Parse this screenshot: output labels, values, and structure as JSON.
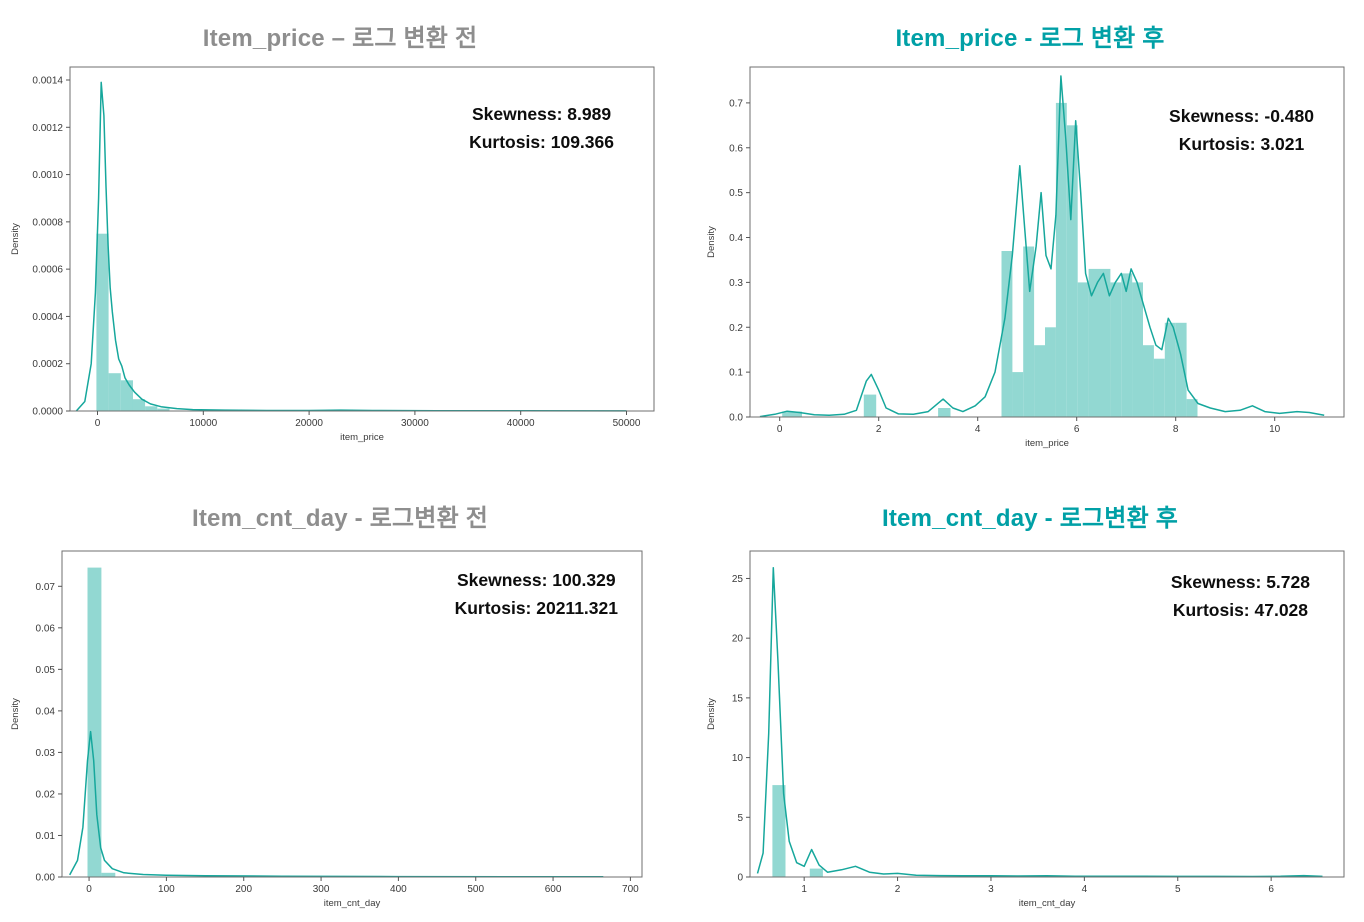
{
  "colors": {
    "line": "#16a79c",
    "fill": "#86d4cd",
    "title_muted": "#8e8e8e",
    "title_accent": "#00a0a6",
    "annotation": "#0d0d0d",
    "frame": "#6f6f6f"
  },
  "chart_data": [
    {
      "type": "area",
      "subtype": "histogram+kde-density",
      "title": "Item_price – 로그 변환 전",
      "title_style": "muted",
      "annotation": {
        "skewness": "Skewness: 8.989",
        "kurtosis": "Kurtosis: 109.366"
      },
      "xlabel": "item_price",
      "ylabel": "Density",
      "xlim": [
        -2600,
        52600
      ],
      "ylim": [
        0,
        0.001455
      ],
      "grid": false,
      "xticks": [
        {
          "v": 0,
          "label": "0"
        },
        {
          "v": 10000,
          "label": "10000"
        },
        {
          "v": 20000,
          "label": "20000"
        },
        {
          "v": 30000,
          "label": "30000"
        },
        {
          "v": 40000,
          "label": "40000"
        },
        {
          "v": 50000,
          "label": "50000"
        }
      ],
      "yticks": [
        {
          "v": 0.0,
          "label": "0.0000"
        },
        {
          "v": 0.0002,
          "label": "0.0002"
        },
        {
          "v": 0.0004,
          "label": "0.0004"
        },
        {
          "v": 0.0006,
          "label": "0.0006"
        },
        {
          "v": 0.0008,
          "label": "0.0008"
        },
        {
          "v": 0.001,
          "label": "0.0010"
        },
        {
          "v": 0.0012,
          "label": "0.0012"
        },
        {
          "v": 0.0014,
          "label": "0.0014"
        }
      ],
      "bars": [
        [
          -100,
          1050,
          0.00075
        ],
        [
          1050,
          2200,
          0.00016
        ],
        [
          2200,
          3350,
          0.00013
        ],
        [
          3350,
          4500,
          5e-05
        ],
        [
          4500,
          5650,
          2e-05
        ],
        [
          5650,
          6800,
          1e-05
        ]
      ],
      "kde": [
        [
          -2000,
          0.0
        ],
        [
          -1200,
          4e-05
        ],
        [
          -600,
          0.0002
        ],
        [
          -200,
          0.0005
        ],
        [
          100,
          0.0009
        ],
        [
          350,
          0.00139
        ],
        [
          600,
          0.00125
        ],
        [
          800,
          0.00095
        ],
        [
          1000,
          0.0007
        ],
        [
          1200,
          0.00052
        ],
        [
          1400,
          0.00042
        ],
        [
          1700,
          0.0003
        ],
        [
          2000,
          0.00022
        ],
        [
          2300,
          0.00019
        ],
        [
          2600,
          0.00014
        ],
        [
          3000,
          0.00011
        ],
        [
          3500,
          8e-05
        ],
        [
          4200,
          5e-05
        ],
        [
          5000,
          3e-05
        ],
        [
          6000,
          1.8e-05
        ],
        [
          7500,
          1e-05
        ],
        [
          9000,
          6e-06
        ],
        [
          12000,
          4e-06
        ],
        [
          16000,
          2e-06
        ],
        [
          20000,
          2e-06
        ],
        [
          23000,
          4e-06
        ],
        [
          26000,
          2e-06
        ],
        [
          32000,
          1e-06
        ],
        [
          40000,
          1e-06
        ],
        [
          50000,
          5e-07
        ]
      ]
    },
    {
      "type": "area",
      "subtype": "histogram+kde-density",
      "title": "Item_price - 로그 변환 후",
      "title_style": "accent",
      "annotation": {
        "skewness": "Skewness: -0.480",
        "kurtosis": "Kurtosis: 3.021"
      },
      "xlabel": "item_price",
      "ylabel": "Density",
      "xlim": [
        -0.6,
        11.4
      ],
      "ylim": [
        0,
        0.78
      ],
      "grid": false,
      "xticks": [
        {
          "v": 0,
          "label": "0"
        },
        {
          "v": 2,
          "label": "2"
        },
        {
          "v": 4,
          "label": "4"
        },
        {
          "v": 6,
          "label": "6"
        },
        {
          "v": 8,
          "label": "8"
        },
        {
          "v": 10,
          "label": "10"
        }
      ],
      "yticks": [
        {
          "v": 0.0,
          "label": "0.0"
        },
        {
          "v": 0.1,
          "label": "0.1"
        },
        {
          "v": 0.2,
          "label": "0.2"
        },
        {
          "v": 0.3,
          "label": "0.3"
        },
        {
          "v": 0.4,
          "label": "0.4"
        },
        {
          "v": 0.5,
          "label": "0.5"
        },
        {
          "v": 0.6,
          "label": "0.6"
        },
        {
          "v": 0.7,
          "label": "0.7"
        }
      ],
      "bars": [
        [
          0.05,
          0.45,
          0.012
        ],
        [
          1.7,
          1.95,
          0.05
        ],
        [
          3.2,
          3.45,
          0.02
        ],
        [
          4.48,
          4.7,
          0.37
        ],
        [
          4.7,
          4.92,
          0.1
        ],
        [
          4.92,
          5.14,
          0.38
        ],
        [
          5.14,
          5.36,
          0.16
        ],
        [
          5.36,
          5.58,
          0.2
        ],
        [
          5.58,
          5.8,
          0.7
        ],
        [
          5.8,
          6.02,
          0.65
        ],
        [
          6.02,
          6.24,
          0.3
        ],
        [
          6.24,
          6.46,
          0.33
        ],
        [
          6.46,
          6.68,
          0.33
        ],
        [
          6.68,
          6.9,
          0.3
        ],
        [
          6.9,
          7.12,
          0.32
        ],
        [
          7.12,
          7.34,
          0.3
        ],
        [
          7.34,
          7.56,
          0.16
        ],
        [
          7.56,
          7.78,
          0.13
        ],
        [
          7.78,
          8.0,
          0.21
        ],
        [
          8.0,
          8.22,
          0.21
        ],
        [
          8.22,
          8.44,
          0.04
        ]
      ],
      "kde": [
        [
          -0.4,
          0.001
        ],
        [
          -0.1,
          0.006
        ],
        [
          0.15,
          0.013
        ],
        [
          0.4,
          0.01
        ],
        [
          0.7,
          0.005
        ],
        [
          1.0,
          0.004
        ],
        [
          1.3,
          0.006
        ],
        [
          1.55,
          0.015
        ],
        [
          1.75,
          0.08
        ],
        [
          1.85,
          0.095
        ],
        [
          2.0,
          0.06
        ],
        [
          2.15,
          0.02
        ],
        [
          2.4,
          0.007
        ],
        [
          2.7,
          0.006
        ],
        [
          3.0,
          0.012
        ],
        [
          3.3,
          0.04
        ],
        [
          3.5,
          0.02
        ],
        [
          3.7,
          0.012
        ],
        [
          3.95,
          0.025
        ],
        [
          4.15,
          0.045
        ],
        [
          4.35,
          0.1
        ],
        [
          4.55,
          0.22
        ],
        [
          4.7,
          0.36
        ],
        [
          4.85,
          0.56
        ],
        [
          4.95,
          0.42
        ],
        [
          5.05,
          0.28
        ],
        [
          5.18,
          0.38
        ],
        [
          5.28,
          0.5
        ],
        [
          5.38,
          0.36
        ],
        [
          5.48,
          0.33
        ],
        [
          5.58,
          0.45
        ],
        [
          5.68,
          0.76
        ],
        [
          5.78,
          0.62
        ],
        [
          5.88,
          0.44
        ],
        [
          5.98,
          0.66
        ],
        [
          6.08,
          0.5
        ],
        [
          6.18,
          0.32
        ],
        [
          6.3,
          0.27
        ],
        [
          6.42,
          0.3
        ],
        [
          6.54,
          0.32
        ],
        [
          6.66,
          0.27
        ],
        [
          6.78,
          0.3
        ],
        [
          6.9,
          0.32
        ],
        [
          7.0,
          0.28
        ],
        [
          7.1,
          0.33
        ],
        [
          7.22,
          0.3
        ],
        [
          7.35,
          0.25
        ],
        [
          7.48,
          0.2
        ],
        [
          7.6,
          0.16
        ],
        [
          7.72,
          0.15
        ],
        [
          7.85,
          0.22
        ],
        [
          7.95,
          0.2
        ],
        [
          8.1,
          0.14
        ],
        [
          8.25,
          0.06
        ],
        [
          8.45,
          0.03
        ],
        [
          8.7,
          0.02
        ],
        [
          9.0,
          0.012
        ],
        [
          9.3,
          0.015
        ],
        [
          9.55,
          0.025
        ],
        [
          9.8,
          0.012
        ],
        [
          10.1,
          0.008
        ],
        [
          10.45,
          0.012
        ],
        [
          10.7,
          0.01
        ],
        [
          11.0,
          0.004
        ]
      ]
    },
    {
      "type": "area",
      "subtype": "histogram+kde-density",
      "title": "Item_cnt_day - 로그변환 전",
      "title_style": "muted",
      "annotation": {
        "skewness": "Skewness: 100.329",
        "kurtosis": "Kurtosis: 20211.321"
      },
      "xlabel": "item_cnt_day",
      "ylabel": "Density",
      "xlim": [
        -35,
        715
      ],
      "ylim": [
        0,
        0.0785
      ],
      "grid": false,
      "xticks": [
        {
          "v": 0,
          "label": "0"
        },
        {
          "v": 100,
          "label": "100"
        },
        {
          "v": 200,
          "label": "200"
        },
        {
          "v": 300,
          "label": "300"
        },
        {
          "v": 400,
          "label": "400"
        },
        {
          "v": 500,
          "label": "500"
        },
        {
          "v": 600,
          "label": "600"
        },
        {
          "v": 700,
          "label": "700"
        }
      ],
      "yticks": [
        {
          "v": 0.0,
          "label": "0.00"
        },
        {
          "v": 0.01,
          "label": "0.01"
        },
        {
          "v": 0.02,
          "label": "0.02"
        },
        {
          "v": 0.03,
          "label": "0.03"
        },
        {
          "v": 0.04,
          "label": "0.04"
        },
        {
          "v": 0.05,
          "label": "0.05"
        },
        {
          "v": 0.06,
          "label": "0.06"
        },
        {
          "v": 0.07,
          "label": "0.07"
        }
      ],
      "bars": [
        [
          -2,
          16,
          0.0745
        ],
        [
          16,
          34,
          0.001
        ]
      ],
      "kde": [
        [
          -25,
          0.0005
        ],
        [
          -15,
          0.004
        ],
        [
          -8,
          0.012
        ],
        [
          -2,
          0.028
        ],
        [
          2,
          0.035
        ],
        [
          6,
          0.028
        ],
        [
          10,
          0.015
        ],
        [
          15,
          0.007
        ],
        [
          20,
          0.004
        ],
        [
          30,
          0.002
        ],
        [
          45,
          0.001
        ],
        [
          70,
          0.0006
        ],
        [
          100,
          0.0004
        ],
        [
          150,
          0.0003
        ],
        [
          250,
          0.0002
        ],
        [
          400,
          0.0001
        ],
        [
          550,
          8e-05
        ],
        [
          665,
          5e-05
        ]
      ]
    },
    {
      "type": "area",
      "subtype": "histogram+kde-density",
      "title": "Item_cnt_day - 로그변환 후",
      "title_style": "accent",
      "annotation": {
        "skewness": "Skewness: 5.728",
        "kurtosis": "Kurtosis: 47.028"
      },
      "xlabel": "item_cnt_day",
      "ylabel": "Density",
      "xlim": [
        0.42,
        6.78
      ],
      "ylim": [
        0,
        27.3
      ],
      "grid": false,
      "xticks": [
        {
          "v": 1,
          "label": "1"
        },
        {
          "v": 2,
          "label": "2"
        },
        {
          "v": 3,
          "label": "3"
        },
        {
          "v": 4,
          "label": "4"
        },
        {
          "v": 5,
          "label": "5"
        },
        {
          "v": 6,
          "label": "6"
        }
      ],
      "yticks": [
        {
          "v": 0,
          "label": "0"
        },
        {
          "v": 5,
          "label": "5"
        },
        {
          "v": 10,
          "label": "10"
        },
        {
          "v": 15,
          "label": "15"
        },
        {
          "v": 20,
          "label": "20"
        },
        {
          "v": 25,
          "label": "25"
        }
      ],
      "bars": [
        [
          0.66,
          0.8,
          7.7
        ],
        [
          1.06,
          1.2,
          0.7
        ]
      ],
      "kde": [
        [
          0.5,
          0.3
        ],
        [
          0.56,
          2
        ],
        [
          0.62,
          12
        ],
        [
          0.67,
          25.9
        ],
        [
          0.72,
          18
        ],
        [
          0.78,
          7
        ],
        [
          0.84,
          3
        ],
        [
          0.92,
          1.2
        ],
        [
          1.0,
          0.9
        ],
        [
          1.08,
          2.3
        ],
        [
          1.16,
          1.0
        ],
        [
          1.25,
          0.4
        ],
        [
          1.4,
          0.6
        ],
        [
          1.55,
          0.9
        ],
        [
          1.7,
          0.4
        ],
        [
          1.85,
          0.25
        ],
        [
          2.0,
          0.3
        ],
        [
          2.2,
          0.15
        ],
        [
          2.45,
          0.12
        ],
        [
          2.7,
          0.1
        ],
        [
          3.0,
          0.1
        ],
        [
          3.3,
          0.08
        ],
        [
          3.6,
          0.1
        ],
        [
          3.9,
          0.07
        ],
        [
          4.2,
          0.06
        ],
        [
          4.6,
          0.06
        ],
        [
          5.0,
          0.05
        ],
        [
          5.4,
          0.05
        ],
        [
          5.8,
          0.04
        ],
        [
          6.1,
          0.06
        ],
        [
          6.35,
          0.12
        ],
        [
          6.55,
          0.05
        ]
      ]
    }
  ]
}
